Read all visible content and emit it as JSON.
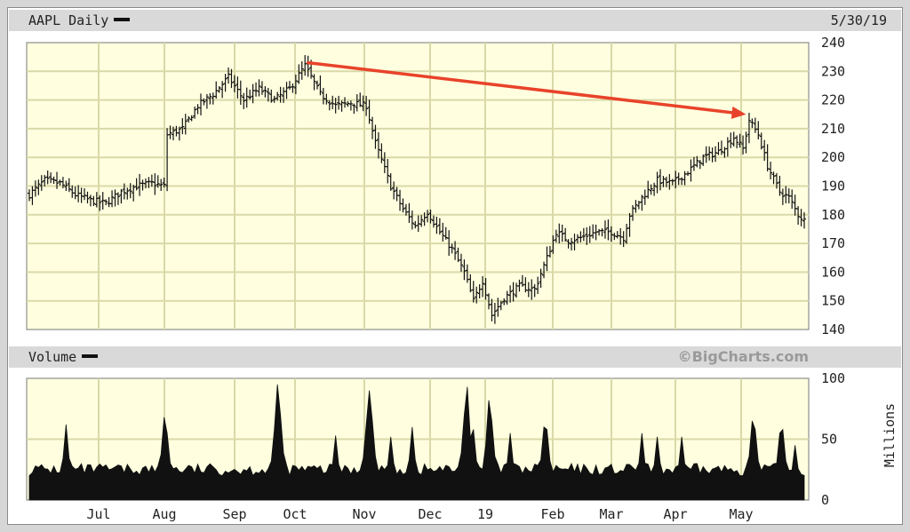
{
  "header": {
    "title": "AAPL Daily",
    "date": "5/30/19"
  },
  "volume_panel": {
    "title": "Volume",
    "credit": "©BigCharts.com",
    "unit_label": "Millions"
  },
  "colors": {
    "plot_bg": "#ffffe0",
    "grid": "#d9d9a8",
    "bar": "#111111",
    "trend_arrow": "#e8432a"
  },
  "chart_data": [
    {
      "type": "ohlc",
      "title": "AAPL Daily",
      "ylim": [
        140,
        240
      ],
      "yticks": [
        140,
        150,
        160,
        170,
        180,
        190,
        200,
        210,
        220,
        230,
        240
      ],
      "grid": true,
      "x_labels": [
        "Jul",
        "Aug",
        "Sep",
        "Oct",
        "Nov",
        "Dec",
        "19",
        "Feb",
        "Mar",
        "Apr",
        "May"
      ],
      "price_path": [
        [
          0,
          187
        ],
        [
          5,
          192
        ],
        [
          10,
          191
        ],
        [
          15,
          187
        ],
        [
          20,
          185
        ],
        [
          25,
          184
        ],
        [
          30,
          188
        ],
        [
          35,
          190
        ],
        [
          40,
          191
        ],
        [
          44,
          190
        ],
        [
          45,
          208
        ],
        [
          50,
          210
        ],
        [
          55,
          218
        ],
        [
          60,
          222
        ],
        [
          65,
          228
        ],
        [
          70,
          220
        ],
        [
          75,
          224
        ],
        [
          80,
          220
        ],
        [
          85,
          224
        ],
        [
          90,
          232
        ],
        [
          95,
          222
        ],
        [
          100,
          218
        ],
        [
          105,
          219
        ],
        [
          110,
          218
        ],
        [
          113,
          205
        ],
        [
          118,
          190
        ],
        [
          122,
          182
        ],
        [
          126,
          176
        ],
        [
          130,
          181
        ],
        [
          134,
          174
        ],
        [
          138,
          168
        ],
        [
          142,
          160
        ],
        [
          145,
          150
        ],
        [
          148,
          157
        ],
        [
          151,
          145
        ],
        [
          155,
          151
        ],
        [
          160,
          155
        ],
        [
          165,
          154
        ],
        [
          169,
          165
        ],
        [
          172,
          174
        ],
        [
          176,
          171
        ],
        [
          180,
          172
        ],
        [
          185,
          174
        ],
        [
          190,
          174
        ],
        [
          194,
          172
        ],
        [
          196,
          180
        ],
        [
          200,
          186
        ],
        [
          205,
          192
        ],
        [
          210,
          191
        ],
        [
          215,
          195
        ],
        [
          220,
          200
        ],
        [
          225,
          202
        ],
        [
          230,
          207
        ],
        [
          233,
          203
        ],
        [
          235,
          213
        ],
        [
          238,
          208
        ],
        [
          241,
          197
        ],
        [
          245,
          188
        ],
        [
          248,
          186
        ],
        [
          251,
          180
        ],
        [
          253,
          178
        ]
      ],
      "trend_arrow": {
        "from": [
          91,
          233
        ],
        "to": [
          234,
          215
        ]
      }
    },
    {
      "type": "area",
      "title": "Volume",
      "ylabel": "Millions",
      "ylim": [
        0,
        100
      ],
      "yticks": [
        0,
        50,
        100
      ],
      "grid": true,
      "base_level": 25,
      "spikes": [
        [
          12,
          62
        ],
        [
          45,
          55
        ],
        [
          44,
          68
        ],
        [
          80,
          58
        ],
        [
          81,
          95
        ],
        [
          82,
          70
        ],
        [
          100,
          53
        ],
        [
          110,
          62
        ],
        [
          111,
          90
        ],
        [
          112,
          65
        ],
        [
          118,
          52
        ],
        [
          125,
          60
        ],
        [
          142,
          70
        ],
        [
          143,
          93
        ],
        [
          145,
          58
        ],
        [
          150,
          82
        ],
        [
          151,
          65
        ],
        [
          157,
          55
        ],
        [
          168,
          60
        ],
        [
          169,
          58
        ],
        [
          200,
          55
        ],
        [
          205,
          52
        ],
        [
          213,
          52
        ],
        [
          236,
          65
        ],
        [
          237,
          58
        ],
        [
          245,
          55
        ],
        [
          246,
          58
        ],
        [
          250,
          45
        ]
      ]
    }
  ]
}
